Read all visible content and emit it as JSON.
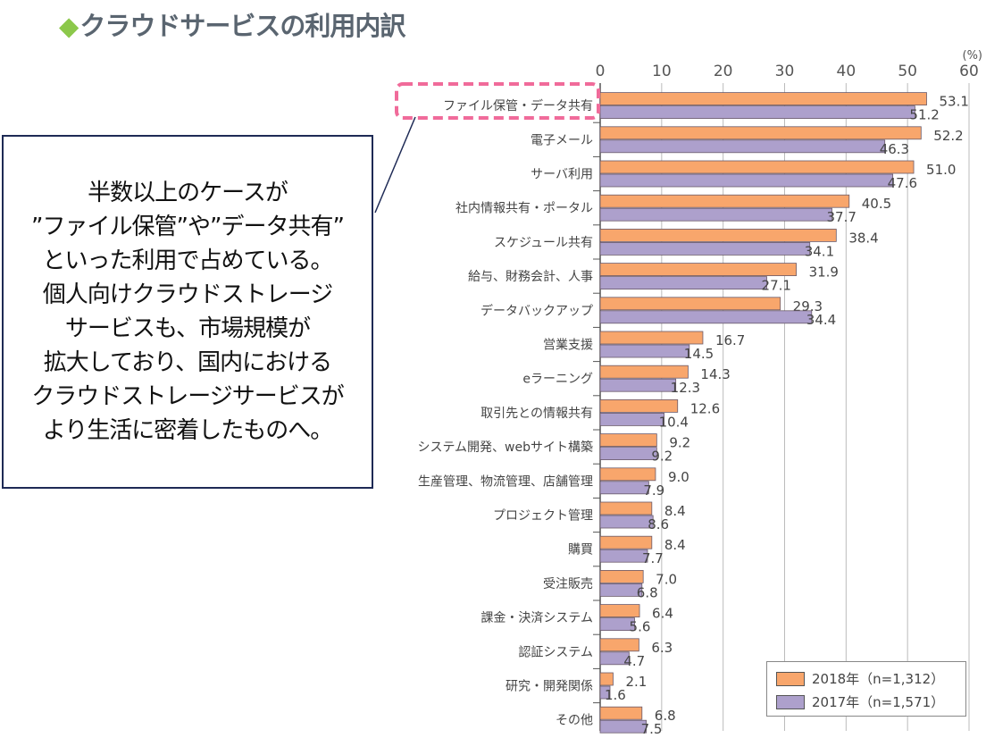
{
  "title": "クラウドサービスの利用内訳",
  "callout": {
    "lines": [
      "半数以上のケースが",
      "”ファイル保管”や”データ共有”",
      "といった利用で占めている。",
      "個人向けクラウドストレージ",
      "サービスも、市場規模が",
      "拡大しており、国内における",
      "クラウドストレージサービスが",
      "より生活に密着したものへ。"
    ]
  },
  "colors": {
    "series_2018": "#f8a66c",
    "series_2017": "#ada0cc",
    "highlight": "#f06b9a",
    "callout_border": "#1e2a55",
    "title_marker": "#8cc84b"
  },
  "chart_data": {
    "type": "bar",
    "orientation": "horizontal",
    "unit_label": "(%)",
    "xlim": [
      0,
      60
    ],
    "xticks": [
      0,
      10,
      20,
      30,
      40,
      50,
      60
    ],
    "grid": true,
    "legend_position": "bottom-right",
    "highlighted_category": "ファイル保管・データ共有",
    "categories": [
      "ファイル保管・データ共有",
      "電子メール",
      "サーバ利用",
      "社内情報共有・ポータル",
      "スケジュール共有",
      "給与、財務会計、人事",
      "データバックアップ",
      "営業支援",
      "eラーニング",
      "取引先との情報共有",
      "システム開発、webサイト構築",
      "生産管理、物流管理、店舗管理",
      "プロジェクト管理",
      "購買",
      "受注販売",
      "課金・決済システム",
      "認証システム",
      "研究・開発関係",
      "その他"
    ],
    "series": [
      {
        "name": "2018年（n=1,312）",
        "values": [
          53.1,
          52.2,
          51.0,
          40.5,
          38.4,
          31.9,
          29.3,
          16.7,
          14.3,
          12.6,
          9.2,
          9.0,
          8.4,
          8.4,
          7.0,
          6.4,
          6.3,
          2.1,
          6.8
        ]
      },
      {
        "name": "2017年（n=1,571）",
        "values": [
          51.2,
          46.3,
          47.6,
          37.7,
          34.1,
          27.1,
          34.4,
          14.5,
          12.3,
          10.4,
          9.2,
          7.9,
          8.6,
          7.7,
          6.8,
          5.6,
          4.7,
          1.6,
          7.5
        ]
      }
    ]
  }
}
